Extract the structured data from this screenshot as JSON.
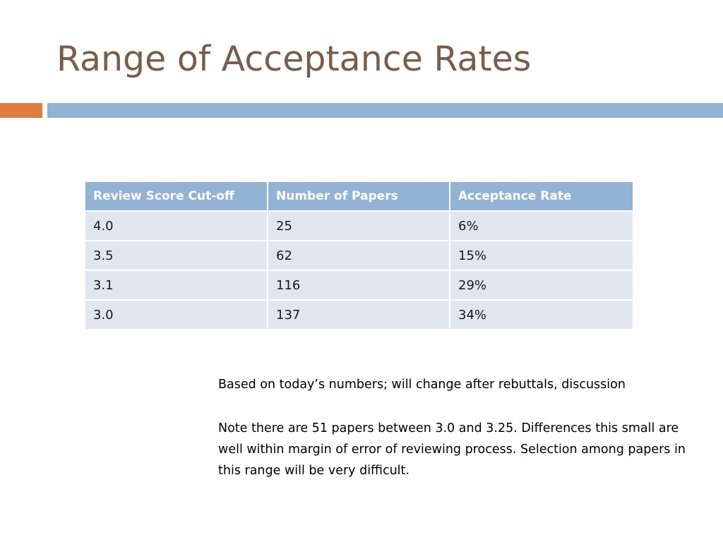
{
  "slide": {
    "title": "Range of Acceptance Rates"
  },
  "colors": {
    "title": "#7a5c49",
    "accent_orange": "#e07e41",
    "accent_blue": "#93b3d5",
    "table_header_bg": "#93b3d5",
    "table_row_bg": "#dfe6ef"
  },
  "table": {
    "headers": [
      "Review Score Cut-off",
      "Number of Papers",
      "Acceptance Rate"
    ],
    "rows": [
      [
        "4.0",
        "25",
        "6%"
      ],
      [
        "3.5",
        "62",
        "15%"
      ],
      [
        "3.1",
        "116",
        "29%"
      ],
      [
        "3.0",
        "137",
        "34%"
      ]
    ]
  },
  "notes": {
    "line1": "Based on today’s numbers; will change after rebuttals, discussion",
    "paragraph2": "Note there are 51 papers between 3.0 and 3.25. Differences this small are well within margin of error of reviewing process. Selection among papers in this range will be very difficult."
  }
}
